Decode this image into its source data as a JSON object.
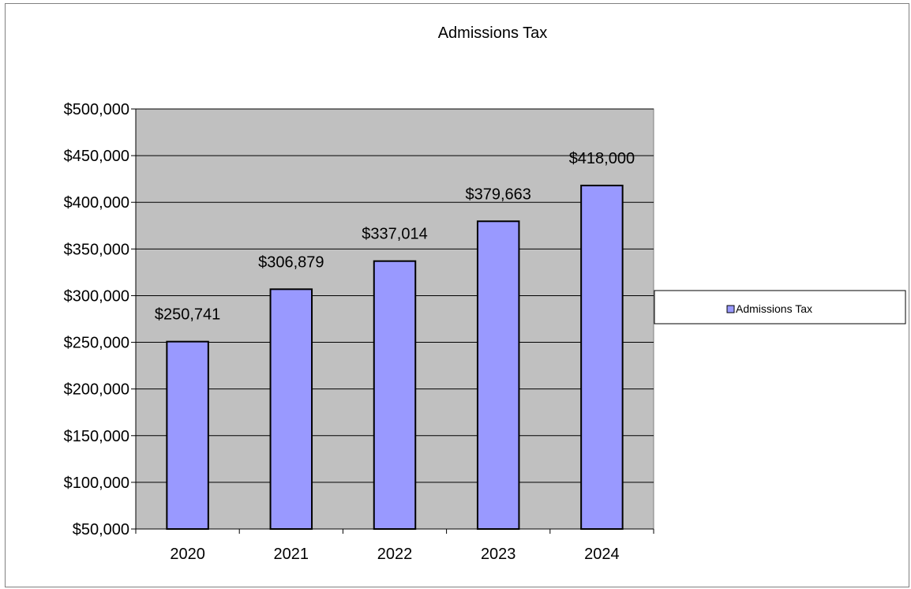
{
  "chart_data": {
    "type": "bar",
    "title": "Admissions Tax",
    "categories": [
      "2020",
      "2021",
      "2022",
      "2023",
      "2024"
    ],
    "series": [
      {
        "name": "Admissions Tax",
        "values": [
          250741,
          306879,
          337014,
          379663,
          418000
        ]
      }
    ],
    "data_labels": [
      "$250,741",
      "$306,879",
      "$337,014",
      "$379,663",
      "$418,000"
    ],
    "y_ticks": [
      50000,
      100000,
      150000,
      200000,
      250000,
      300000,
      350000,
      400000,
      450000,
      500000
    ],
    "y_tick_labels": [
      "$50,000",
      "$100,000",
      "$150,000",
      "$200,000",
      "$250,000",
      "$300,000",
      "$350,000",
      "$400,000",
      "$450,000",
      "$500,000"
    ],
    "ylim": [
      50000,
      500000
    ],
    "xlabel": "",
    "ylabel": "",
    "grid": true,
    "legend": "right",
    "colors": {
      "bar": "#9999ff",
      "plot_bg": "#c0c0c0",
      "gridline": "#000000",
      "outline": "#000000"
    }
  }
}
